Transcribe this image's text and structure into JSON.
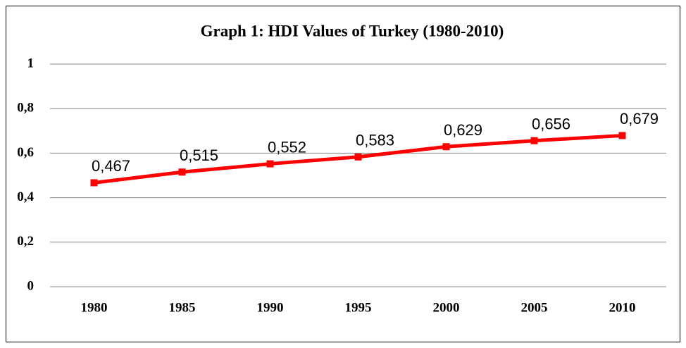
{
  "chart_data": {
    "type": "line",
    "title": "Graph 1: HDI Values of Turkey (1980-2010)",
    "categories": [
      "1980",
      "1985",
      "1990",
      "1995",
      "2000",
      "2005",
      "2010"
    ],
    "series": [
      {
        "name": "HDI",
        "color": "#ff0000",
        "values": [
          0.467,
          0.515,
          0.552,
          0.583,
          0.629,
          0.656,
          0.679
        ],
        "value_labels": [
          "0,467",
          "0,515",
          "0,552",
          "0,583",
          "0,629",
          "0,656",
          "0,679"
        ]
      }
    ],
    "ylim": [
      0,
      1
    ],
    "yticks": [
      0,
      {
        "value": 0.2,
        "label": "0,2"
      },
      {
        "value": 0.4,
        "label": "0,4"
      },
      {
        "value": 0.6,
        "label": "0,6"
      },
      {
        "value": 0.8,
        "label": "0,8"
      },
      1
    ],
    "grid": true
  }
}
